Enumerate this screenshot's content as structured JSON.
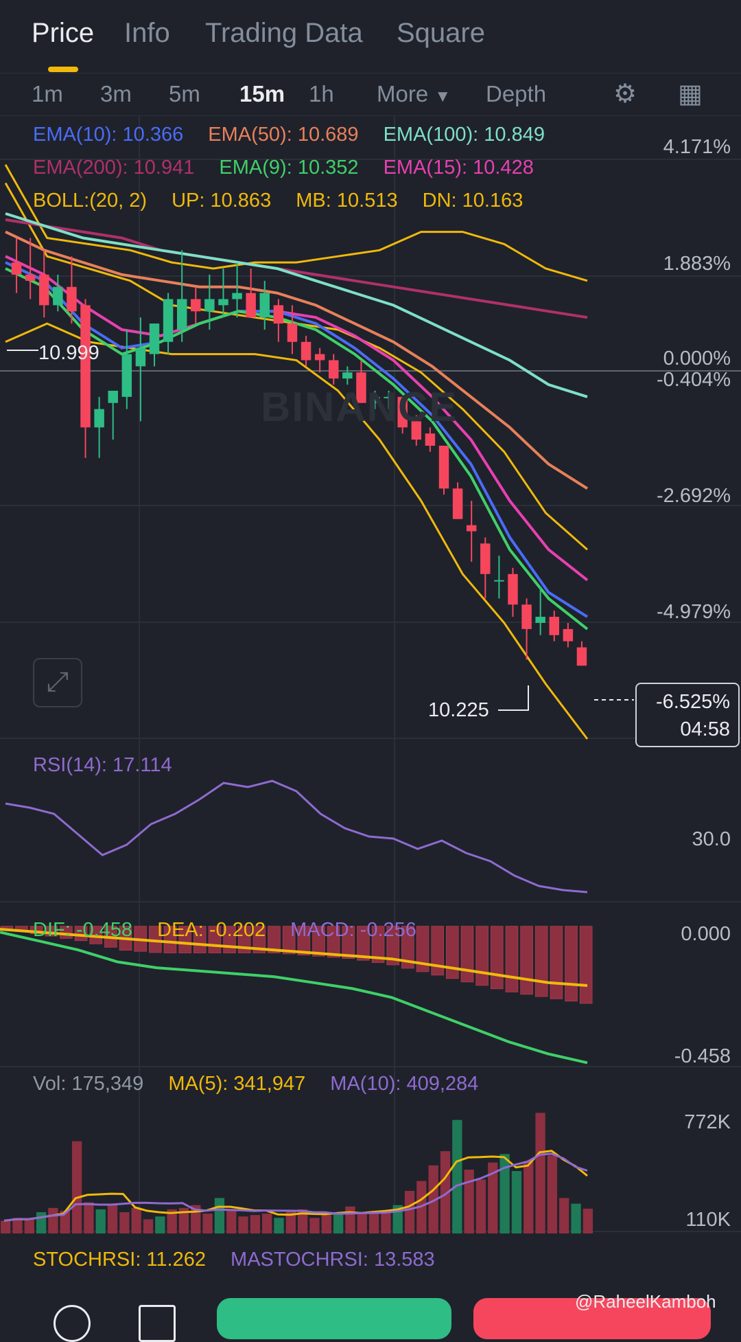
{
  "tabs": [
    {
      "label": "Price",
      "active": true
    },
    {
      "label": "Info",
      "active": false
    },
    {
      "label": "Trading Data",
      "active": false
    },
    {
      "label": "Square",
      "active": false
    }
  ],
  "timeframes": [
    {
      "label": "1m",
      "active": false
    },
    {
      "label": "3m",
      "active": false
    },
    {
      "label": "5m",
      "active": false
    },
    {
      "label": "15m",
      "active": true
    },
    {
      "label": "1h",
      "active": false
    }
  ],
  "more_label": "More",
  "depth_label": "Depth",
  "ema_legend": [
    {
      "label": "EMA(10): 10.366",
      "color": "#4a6cf7"
    },
    {
      "label": "EMA(50): 10.689",
      "color": "#e8805a"
    },
    {
      "label": "EMA(100): 10.849",
      "color": "#7ee0c6"
    },
    {
      "label": "EMA(200): 10.941",
      "color": "#b0306a"
    },
    {
      "label": "EMA(9): 10.352",
      "color": "#3fd068"
    },
    {
      "label": "EMA(15): 10.428",
      "color": "#e840b0"
    }
  ],
  "boll_legend": [
    "BOLL:(20, 2)",
    "UP: 10.863",
    "MB: 10.513",
    "DN: 10.163"
  ],
  "price_axis": [
    "4.171%",
    "1.883%",
    "0.000%",
    "-0.404%",
    "-2.692%",
    "-4.979%"
  ],
  "high_marker": "10.999",
  "low_marker": "10.225",
  "current_pct": "-6.525%",
  "countdown": "04:58",
  "watermark": "BINANCE",
  "rsi_label": "RSI(14): 17.114",
  "rsi_axis": "30.0",
  "macd_legend": [
    {
      "label": "DIF: -0.458",
      "color": "#3fd068"
    },
    {
      "label": "DEA: -0.202",
      "color": "#f0b90b"
    },
    {
      "label": "MACD: -0.256",
      "color": "#8f6bd0"
    }
  ],
  "macd_axis": [
    "0.000",
    "-0.458"
  ],
  "vol_legend": [
    {
      "label": "Vol: 175,349",
      "color": "#9098a4"
    },
    {
      "label": "MA(5): 341,947",
      "color": "#f0b90b"
    },
    {
      "label": "MA(10): 409,284",
      "color": "#8f6bd0"
    }
  ],
  "vol_axis": [
    "772K",
    "110K"
  ],
  "stoch_legend": [
    {
      "label": "STOCHRSI: 11.262",
      "color": "#f0b90b"
    },
    {
      "label": "MASTOCHRSI: 13.583",
      "color": "#8f6bd0"
    }
  ],
  "credit": "@RaheelKamboh",
  "chart_data": {
    "type": "candlestick",
    "candles": [
      {
        "o": 10.95,
        "h": 10.99,
        "l": 10.9,
        "c": 10.93
      },
      {
        "o": 10.93,
        "h": 10.99,
        "l": 10.89,
        "c": 10.92
      },
      {
        "o": 10.93,
        "h": 10.97,
        "l": 10.86,
        "c": 10.88
      },
      {
        "o": 10.88,
        "h": 10.93,
        "l": 10.87,
        "c": 10.91
      },
      {
        "o": 10.91,
        "h": 10.96,
        "l": 10.85,
        "c": 10.87
      },
      {
        "o": 10.88,
        "h": 10.89,
        "l": 10.63,
        "c": 10.68
      },
      {
        "o": 10.68,
        "h": 10.73,
        "l": 10.63,
        "c": 10.71
      },
      {
        "o": 10.72,
        "h": 10.74,
        "l": 10.66,
        "c": 10.74
      },
      {
        "o": 10.73,
        "h": 10.84,
        "l": 10.71,
        "c": 10.8
      },
      {
        "o": 10.78,
        "h": 10.86,
        "l": 10.69,
        "c": 10.81
      },
      {
        "o": 10.8,
        "h": 10.85,
        "l": 10.78,
        "c": 10.85
      },
      {
        "o": 10.82,
        "h": 10.9,
        "l": 10.8,
        "c": 10.89
      },
      {
        "o": 10.84,
        "h": 10.97,
        "l": 10.82,
        "c": 10.89
      },
      {
        "o": 10.89,
        "h": 10.91,
        "l": 10.85,
        "c": 10.87
      },
      {
        "o": 10.87,
        "h": 10.93,
        "l": 10.84,
        "c": 10.89
      },
      {
        "o": 10.88,
        "h": 10.94,
        "l": 10.86,
        "c": 10.89
      },
      {
        "o": 10.89,
        "h": 10.95,
        "l": 10.86,
        "c": 10.9
      },
      {
        "o": 10.9,
        "h": 10.94,
        "l": 10.86,
        "c": 10.86
      },
      {
        "o": 10.86,
        "h": 10.92,
        "l": 10.84,
        "c": 10.9
      },
      {
        "o": 10.88,
        "h": 10.89,
        "l": 10.82,
        "c": 10.85
      },
      {
        "o": 10.85,
        "h": 10.88,
        "l": 10.8,
        "c": 10.82
      },
      {
        "o": 10.82,
        "h": 10.83,
        "l": 10.78,
        "c": 10.79
      },
      {
        "o": 10.8,
        "h": 10.81,
        "l": 10.77,
        "c": 10.79
      },
      {
        "o": 10.79,
        "h": 10.8,
        "l": 10.75,
        "c": 10.76
      },
      {
        "o": 10.76,
        "h": 10.78,
        "l": 10.75,
        "c": 10.77
      },
      {
        "o": 10.77,
        "h": 10.79,
        "l": 10.72,
        "c": 10.72
      },
      {
        "o": 10.72,
        "h": 10.74,
        "l": 10.71,
        "c": 10.73
      },
      {
        "o": 10.73,
        "h": 10.74,
        "l": 10.71,
        "c": 10.73
      },
      {
        "o": 10.73,
        "h": 10.73,
        "l": 10.67,
        "c": 10.68
      },
      {
        "o": 10.69,
        "h": 10.7,
        "l": 10.65,
        "c": 10.66
      },
      {
        "o": 10.67,
        "h": 10.68,
        "l": 10.64,
        "c": 10.65
      },
      {
        "o": 10.65,
        "h": 10.65,
        "l": 10.57,
        "c": 10.58
      },
      {
        "o": 10.58,
        "h": 10.59,
        "l": 10.53,
        "c": 10.53
      },
      {
        "o": 10.52,
        "h": 10.56,
        "l": 10.46,
        "c": 10.51
      },
      {
        "o": 10.49,
        "h": 10.5,
        "l": 10.4,
        "c": 10.44
      },
      {
        "o": 10.43,
        "h": 10.47,
        "l": 10.4,
        "c": 10.43
      },
      {
        "o": 10.44,
        "h": 10.45,
        "l": 10.37,
        "c": 10.39
      },
      {
        "o": 10.39,
        "h": 10.4,
        "l": 10.3,
        "c": 10.35
      },
      {
        "o": 10.36,
        "h": 10.42,
        "l": 10.34,
        "c": 10.37
      },
      {
        "o": 10.37,
        "h": 10.38,
        "l": 10.33,
        "c": 10.34
      },
      {
        "o": 10.35,
        "h": 10.36,
        "l": 10.32,
        "c": 10.33
      },
      {
        "o": 10.32,
        "h": 10.33,
        "l": 10.29,
        "c": 10.29
      }
    ],
    "price_range": [
      10.17,
      11.13
    ],
    "ema_series": [
      {
        "name": "EMA(200)",
        "color": "#b0306a",
        "values": [
          11.02,
          11.01,
          11.0,
          10.99,
          10.97,
          10.96,
          10.95,
          10.94,
          10.93,
          10.92,
          10.91,
          10.9,
          10.89,
          10.88,
          10.87,
          10.86
        ]
      },
      {
        "name": "EMA(100)",
        "color": "#7ee0c6",
        "values": [
          11.03,
          11.01,
          10.99,
          10.98,
          10.97,
          10.96,
          10.95,
          10.94,
          10.92,
          10.9,
          10.88,
          10.85,
          10.82,
          10.79,
          10.75,
          10.73
        ]
      },
      {
        "name": "EMA(50)",
        "color": "#e8805a",
        "values": [
          11.0,
          10.97,
          10.95,
          10.93,
          10.92,
          10.91,
          10.91,
          10.9,
          10.88,
          10.85,
          10.82,
          10.78,
          10.73,
          10.68,
          10.62,
          10.58
        ]
      },
      {
        "name": "EMA(15)",
        "color": "#e840b0",
        "values": [
          10.96,
          10.93,
          10.88,
          10.84,
          10.83,
          10.85,
          10.87,
          10.87,
          10.86,
          10.83,
          10.79,
          10.73,
          10.66,
          10.56,
          10.48,
          10.43
        ]
      },
      {
        "name": "EMA(10)",
        "color": "#4a6cf7",
        "values": [
          10.95,
          10.92,
          10.85,
          10.81,
          10.82,
          10.85,
          10.87,
          10.87,
          10.85,
          10.81,
          10.76,
          10.7,
          10.62,
          10.5,
          10.41,
          10.37
        ]
      },
      {
        "name": "EMA(9)",
        "color": "#3fd068",
        "values": [
          10.94,
          10.91,
          10.84,
          10.8,
          10.82,
          10.85,
          10.87,
          10.86,
          10.84,
          10.8,
          10.75,
          10.69,
          10.6,
          10.48,
          10.4,
          10.35
        ]
      }
    ],
    "boll_up": [
      11.11,
      10.99,
      10.98,
      10.97,
      10.95,
      10.94,
      10.95,
      10.95,
      10.96,
      10.97,
      11.0,
      11.0,
      10.98,
      10.94,
      10.92
    ],
    "boll_mb": [
      11.08,
      10.96,
      10.94,
      10.92,
      10.88,
      10.87,
      10.86,
      10.85,
      10.84,
      10.81,
      10.77,
      10.71,
      10.64,
      10.54,
      10.48
    ],
    "boll_dn": [
      10.82,
      10.85,
      10.82,
      10.81,
      10.8,
      10.8,
      10.8,
      10.79,
      10.74,
      10.66,
      10.56,
      10.44,
      10.36,
      10.26,
      10.17
    ],
    "rsi": [
      60,
      58,
      55,
      45,
      35,
      40,
      50,
      55,
      62,
      70,
      68,
      71,
      66,
      55,
      48,
      44,
      43,
      38,
      42,
      36,
      32,
      25,
      20,
      18,
      17
    ],
    "rsi_range": [
      10,
      80
    ],
    "macd_dif": [
      -0.02,
      -0.05,
      -0.08,
      -0.12,
      -0.14,
      -0.15,
      -0.16,
      -0.17,
      -0.19,
      -0.21,
      -0.24,
      -0.29,
      -0.34,
      -0.39,
      -0.43,
      -0.46
    ],
    "macd_dea": [
      -0.01,
      -0.02,
      -0.03,
      -0.04,
      -0.05,
      -0.06,
      -0.07,
      -0.08,
      -0.09,
      -0.1,
      -0.11,
      -0.13,
      -0.15,
      -0.17,
      -0.19,
      -0.2
    ],
    "macd_range": [
      -0.48,
      0.02
    ],
    "volume": [
      90,
      110,
      100,
      150,
      180,
      160,
      650,
      220,
      170,
      200,
      150,
      180,
      100,
      120,
      170,
      180,
      200,
      140,
      250,
      170,
      120,
      130,
      140,
      110,
      160,
      170,
      110,
      130,
      150,
      190,
      140,
      150,
      160,
      200,
      300,
      370,
      480,
      580,
      800,
      450,
      380,
      500,
      560,
      440,
      510,
      850,
      550,
      250,
      210,
      175
    ],
    "vol_range": [
      0,
      900
    ]
  }
}
